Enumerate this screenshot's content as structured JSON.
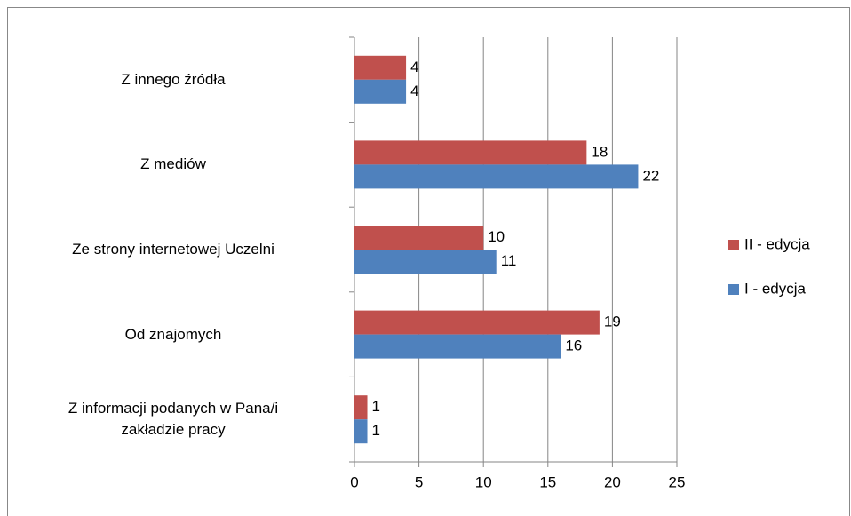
{
  "chart_data": {
    "type": "hbar",
    "categories": [
      "Z innego źródła",
      "Z mediów",
      "Ze strony internetowej Uczelni",
      "Od znajomych",
      "Z informacji podanych w Pana/i zakładzie pracy"
    ],
    "series": [
      {
        "name": "II - edycja",
        "color": "#c0504d",
        "values": [
          4,
          18,
          10,
          19,
          1
        ]
      },
      {
        "name": "I - edycja",
        "color": "#4f81bd",
        "values": [
          4,
          22,
          11,
          16,
          1
        ]
      }
    ],
    "xlim": [
      0,
      25
    ],
    "xticks": [
      0,
      5,
      10,
      15,
      20,
      25
    ],
    "grid": true,
    "legend": "right"
  }
}
